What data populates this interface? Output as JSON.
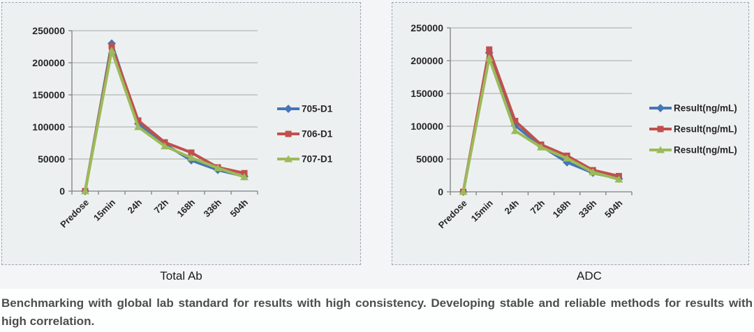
{
  "captions": {
    "left": "Total Ab",
    "right": "ADC"
  },
  "bottom_text": "Benchmarking with global lab standard for results with high consistency. Developing stable and reliable methods for results with high correlation.",
  "colors": {
    "series_blue": "#4576b5",
    "series_red": "#c0504d",
    "series_green": "#9bbb59",
    "gridline": "#a4a7a9",
    "axis": "#7f7f7f",
    "panel_bg": "#edf0f1",
    "panel_border": "#9ca6b0"
  },
  "chart_data": [
    {
      "type": "line",
      "title": "Total Ab",
      "categories": [
        "Predose",
        "15min",
        "24h",
        "72h",
        "168h",
        "336h",
        "504h"
      ],
      "series": [
        {
          "name": "705-D1",
          "color": "#4576b5",
          "marker": "diamond",
          "values": [
            0,
            230000,
            105000,
            73000,
            48000,
            33000,
            23000
          ]
        },
        {
          "name": "706-D1",
          "color": "#c0504d",
          "marker": "square",
          "values": [
            0,
            226000,
            110000,
            76000,
            60000,
            37000,
            28000
          ]
        },
        {
          "name": "707-D1",
          "color": "#9bbb59",
          "marker": "triangle",
          "values": [
            0,
            219000,
            100000,
            70000,
            52000,
            36000,
            22000
          ]
        }
      ],
      "xlabel": "",
      "ylabel": "",
      "ylim": [
        0,
        250000
      ],
      "ytick_step": 50000,
      "yticks": [
        0,
        50000,
        100000,
        150000,
        200000,
        250000
      ],
      "grid": true,
      "legend_position": "right"
    },
    {
      "type": "line",
      "title": "ADC",
      "categories": [
        "Predose",
        "15min",
        "24h",
        "72h",
        "168h",
        "336h",
        "504h"
      ],
      "series": [
        {
          "name": "Result(ng/mL)",
          "color": "#4576b5",
          "marker": "diamond",
          "values": [
            0,
            212000,
            101000,
            70000,
            45000,
            29000,
            20000
          ]
        },
        {
          "name": "Result(ng/mL)",
          "color": "#c0504d",
          "marker": "square",
          "values": [
            0,
            217000,
            108000,
            72000,
            55000,
            33000,
            24000
          ]
        },
        {
          "name": "Result(ng/mL)",
          "color": "#9bbb59",
          "marker": "triangle",
          "values": [
            0,
            204000,
            93000,
            68000,
            51000,
            30000,
            19000
          ]
        }
      ],
      "xlabel": "",
      "ylabel": "",
      "ylim": [
        0,
        250000
      ],
      "ytick_step": 50000,
      "yticks": [
        0,
        50000,
        100000,
        150000,
        200000,
        250000
      ],
      "grid": true,
      "legend_position": "right"
    }
  ]
}
